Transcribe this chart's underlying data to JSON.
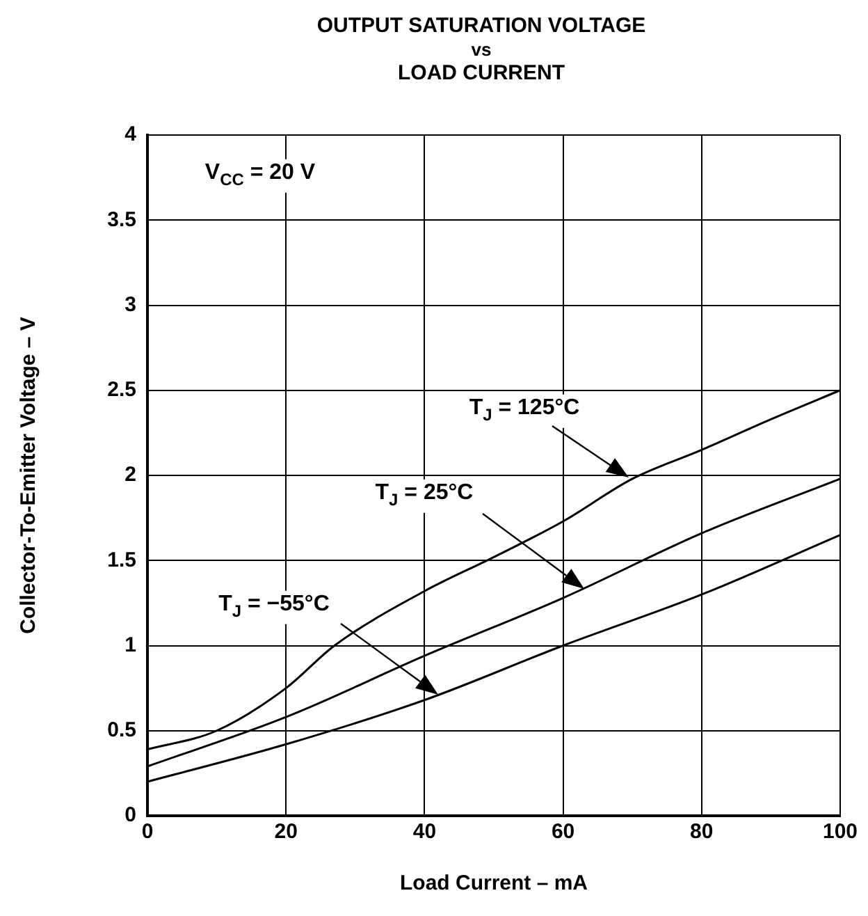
{
  "chart_data": {
    "type": "line",
    "title": "OUTPUT SATURATION VOLTAGE\nvs\nLOAD CURRENT",
    "xlabel": "Load Current – mA",
    "ylabel": "Collector-To-Emitter Voltage – V",
    "xlim": [
      0,
      100
    ],
    "xticks": [
      0,
      20,
      40,
      60,
      80,
      100
    ],
    "ylim": [
      0,
      4
    ],
    "yticks": [
      0,
      0.5,
      1,
      1.5,
      2,
      2.5,
      3,
      3.5,
      4
    ],
    "grid": true,
    "legend": false,
    "marker": "none",
    "line_style": "solid",
    "series": [
      {
        "color": "#000000",
        "x": [
          0,
          10,
          20,
          27,
          40,
          50,
          60,
          70,
          80,
          90,
          100
        ],
        "values": [
          0.39,
          0.5,
          0.75,
          1.0,
          1.32,
          1.52,
          1.73,
          1.98,
          2.15,
          2.33,
          2.5
        ]
      },
      {
        "color": "#000000",
        "x": [
          0,
          20,
          40,
          60,
          80,
          100
        ],
        "values": [
          0.29,
          0.58,
          0.94,
          1.28,
          1.66,
          1.98
        ]
      },
      {
        "color": "#000000",
        "x": [
          0,
          20,
          40,
          60,
          80,
          100
        ],
        "values": [
          0.2,
          0.42,
          0.68,
          1.0,
          1.3,
          1.65
        ]
      }
    ],
    "annotations": [
      "V$_{CC}$ = 20 V",
      "T$_{J}$ = 125°C",
      "T$_{J}$ = 25°C",
      "T$_{J}$ = −55°C"
    ]
  }
}
